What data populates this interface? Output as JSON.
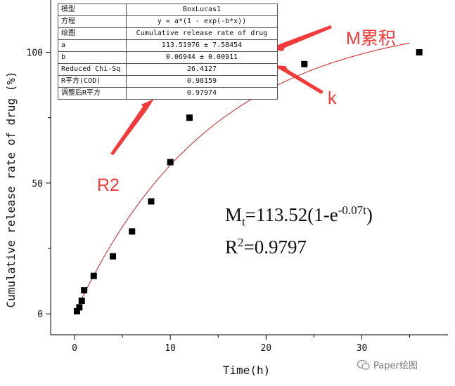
{
  "chart_data": {
    "type": "scatter",
    "xlabel": "Time(h)",
    "ylabel": "Cumulative release rate of drug (%)",
    "xlim": [
      -2.5,
      39
    ],
    "ylim": [
      -8,
      120
    ],
    "xticks": [
      0,
      10,
      20,
      30
    ],
    "yticks": [
      0,
      50,
      100
    ],
    "points": [
      {
        "x": 0.25,
        "y": 1
      },
      {
        "x": 0.5,
        "y": 2.5
      },
      {
        "x": 0.75,
        "y": 5
      },
      {
        "x": 1,
        "y": 9
      },
      {
        "x": 2,
        "y": 14.5
      },
      {
        "x": 4,
        "y": 22
      },
      {
        "x": 6,
        "y": 31.5
      },
      {
        "x": 8,
        "y": 43
      },
      {
        "x": 10,
        "y": 58
      },
      {
        "x": 12,
        "y": 75
      },
      {
        "x": 24,
        "y": 95.5
      },
      {
        "x": 36,
        "y": 100
      }
    ],
    "fit": {
      "model": "BoxLucas1",
      "a": 113.51976,
      "b": 0.06944
    },
    "colors": {
      "points": "#000000",
      "fit_curve": "#cc2222",
      "annotation": "#f23a3a"
    }
  },
  "fit_table": [
    {
      "key": "模型",
      "value": "BoxLucas1"
    },
    {
      "key": "方程",
      "value": "y = a*(1 - exp(-b*x))"
    },
    {
      "key": "绘图",
      "value": "Cumulative release rate of drug"
    },
    {
      "key": "a",
      "value": "113.51976 ± 7.58454"
    },
    {
      "key": "b",
      "value": "0.06944 ± 0.00911"
    },
    {
      "key": "Reduced Chi-Sq",
      "value": "26.4127"
    },
    {
      "key": "R平方(COD)",
      "value": "0.98159"
    },
    {
      "key": "调整后R平方",
      "value": "0.97974"
    }
  ],
  "annotations": {
    "m_label": "M累积",
    "k_label": "k",
    "r2_label": "R2"
  },
  "equation": {
    "m": "M",
    "m_sub": "t",
    "rhs_before": "=113.52(1-e",
    "exponent": "-0.07t",
    "rhs_after": ")",
    "r": "R",
    "r_sup": "2",
    "r_rhs": "=0.9797"
  },
  "watermark": {
    "text": "Paper绘图"
  }
}
